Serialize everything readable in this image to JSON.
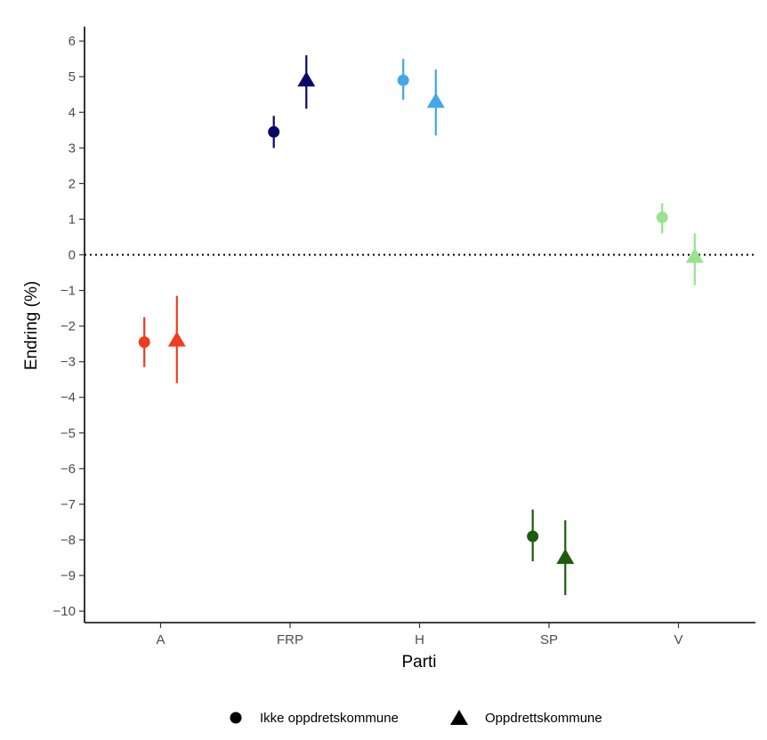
{
  "chart_data": {
    "type": "scatter",
    "xlabel": "Parti",
    "ylabel": "Endring (%)",
    "categories": [
      "A",
      "FRP",
      "H",
      "SP",
      "V"
    ],
    "yticks": [
      6,
      5,
      4,
      3,
      2,
      1,
      0,
      -1,
      -2,
      -3,
      -4,
      -5,
      -6,
      -7,
      -8,
      -9,
      -10
    ],
    "ylim": [
      -10.35,
      6.35
    ],
    "reference_line": {
      "y": 0,
      "style": "dotted"
    },
    "grid": false,
    "legend_position": "bottom",
    "colors": {
      "A": "#f03b20",
      "FRP": "#08086b",
      "H": "#41a7e8",
      "SP": "#1e5b0f",
      "V": "#98e38f"
    },
    "series": [
      {
        "name": "Ikke oppdretskommune",
        "marker": "circle",
        "points": [
          {
            "x": "A",
            "y": -2.45,
            "lower": -3.15,
            "upper": -1.75
          },
          {
            "x": "FRP",
            "y": 3.45,
            "lower": 3.0,
            "upper": 3.9
          },
          {
            "x": "H",
            "y": 4.9,
            "lower": 4.35,
            "upper": 5.5
          },
          {
            "x": "SP",
            "y": -7.9,
            "lower": -8.6,
            "upper": -7.15
          },
          {
            "x": "V",
            "y": 1.05,
            "lower": 0.6,
            "upper": 1.45
          }
        ]
      },
      {
        "name": "Oppdrettskommune",
        "marker": "triangle",
        "points": [
          {
            "x": "A",
            "y": -2.4,
            "lower": -3.6,
            "upper": -1.15
          },
          {
            "x": "FRP",
            "y": 4.9,
            "lower": 4.1,
            "upper": 5.6
          },
          {
            "x": "H",
            "y": 4.3,
            "lower": 3.35,
            "upper": 5.2
          },
          {
            "x": "SP",
            "y": -8.5,
            "lower": -9.55,
            "upper": -7.45
          },
          {
            "x": "V",
            "y": -0.05,
            "lower": -0.85,
            "upper": 0.6
          }
        ]
      }
    ]
  }
}
